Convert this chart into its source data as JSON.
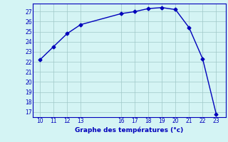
{
  "x": [
    10,
    11,
    12,
    13,
    16,
    17,
    18,
    19,
    20,
    21,
    22,
    23
  ],
  "y": [
    22.2,
    23.5,
    24.8,
    25.7,
    26.8,
    27.0,
    27.3,
    27.4,
    27.2,
    25.4,
    22.3,
    16.8
  ],
  "xlim": [
    9.5,
    23.7
  ],
  "ylim": [
    16.5,
    27.8
  ],
  "xticks": [
    10,
    11,
    12,
    13,
    16,
    17,
    18,
    19,
    20,
    21,
    22,
    23
  ],
  "yticks": [
    17,
    18,
    19,
    20,
    21,
    22,
    23,
    24,
    25,
    26,
    27
  ],
  "xlabel": "Graphe des températures (°c)",
  "line_color": "#0000bb",
  "bg_color": "#d4f4f4",
  "grid_color": "#a0c8c8",
  "marker": "D",
  "marker_size": 2.5,
  "line_width": 1.0
}
